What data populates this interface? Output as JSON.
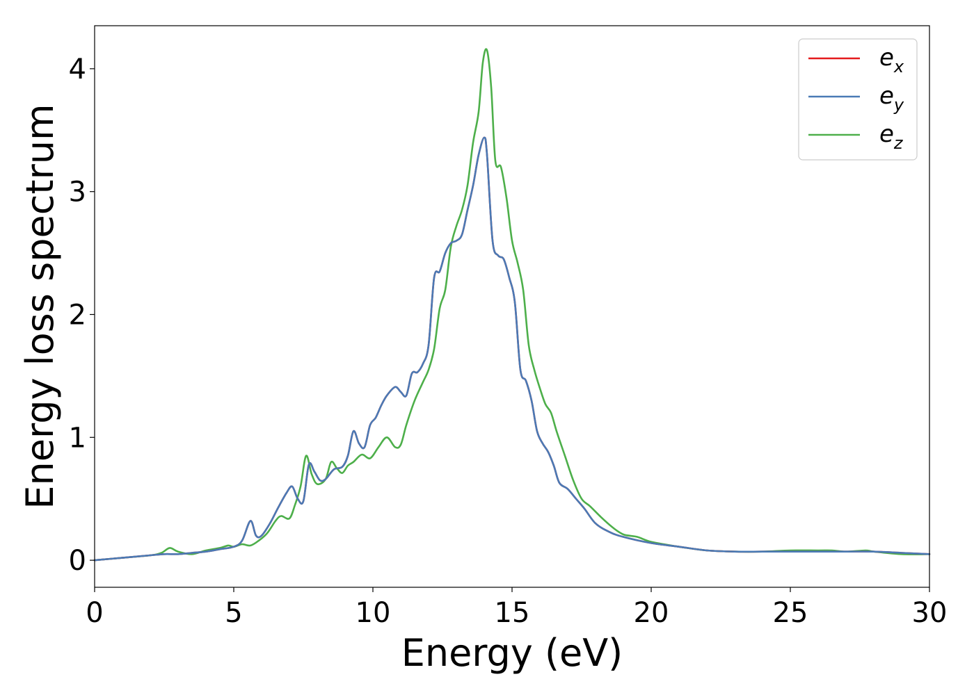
{
  "chart_data": {
    "type": "line",
    "xlabel": "Energy (eV)",
    "ylabel": "Energy loss spectrum",
    "xlim": [
      0,
      30
    ],
    "ylim": [
      -0.22,
      4.35
    ],
    "xticks": [
      0,
      5,
      10,
      15,
      20,
      25,
      30
    ],
    "xtick_labels": [
      "0",
      "5",
      "10",
      "15",
      "20",
      "25",
      "30"
    ],
    "yticks": [
      0,
      1,
      2,
      3,
      4
    ],
    "ytick_labels": [
      "0",
      "1",
      "2",
      "3",
      "4"
    ],
    "grid": false,
    "legend_position": "top-right",
    "series": [
      {
        "name": "e_x",
        "label_base": "e",
        "label_sub": "x",
        "color": "#e41a1c",
        "x": [
          0,
          1,
          2,
          2.5,
          3,
          3.5,
          4,
          4.5,
          5,
          5.3,
          5.6,
          5.8,
          6.0,
          6.3,
          6.6,
          6.9,
          7.1,
          7.3,
          7.5,
          7.7,
          7.9,
          8.1,
          8.3,
          8.6,
          8.9,
          9.1,
          9.3,
          9.5,
          9.7,
          9.9,
          10.1,
          10.3,
          10.5,
          10.8,
          11.0,
          11.2,
          11.4,
          11.6,
          11.8,
          12.0,
          12.2,
          12.4,
          12.6,
          12.8,
          13.0,
          13.2,
          13.4,
          13.6,
          13.8,
          14.0,
          14.1,
          14.3,
          14.5,
          14.7,
          14.9,
          15.1,
          15.3,
          15.5,
          15.7,
          15.9,
          16.1,
          16.3,
          16.5,
          16.7,
          17.0,
          17.3,
          17.6,
          18.0,
          18.5,
          19.0,
          20.0,
          21.0,
          22.0,
          23.0,
          24.0,
          25.0,
          26.0,
          27.0,
          28.0,
          29.0,
          30.0
        ],
        "y": [
          0.0,
          0.02,
          0.04,
          0.05,
          0.05,
          0.06,
          0.07,
          0.09,
          0.11,
          0.16,
          0.32,
          0.2,
          0.2,
          0.3,
          0.43,
          0.55,
          0.6,
          0.5,
          0.48,
          0.78,
          0.72,
          0.65,
          0.66,
          0.74,
          0.76,
          0.85,
          1.05,
          0.95,
          0.92,
          1.1,
          1.16,
          1.26,
          1.34,
          1.41,
          1.37,
          1.34,
          1.52,
          1.53,
          1.6,
          1.75,
          2.3,
          2.35,
          2.5,
          2.58,
          2.6,
          2.65,
          2.85,
          3.05,
          3.3,
          3.44,
          3.3,
          2.6,
          2.48,
          2.45,
          2.3,
          2.1,
          1.55,
          1.46,
          1.3,
          1.05,
          0.95,
          0.88,
          0.77,
          0.63,
          0.58,
          0.5,
          0.42,
          0.3,
          0.23,
          0.19,
          0.14,
          0.11,
          0.08,
          0.07,
          0.07,
          0.07,
          0.07,
          0.07,
          0.07,
          0.06,
          0.05
        ]
      },
      {
        "name": "e_y",
        "label_base": "e",
        "label_sub": "y",
        "color": "#4a7ab5",
        "x": [
          0,
          1,
          2,
          2.5,
          3,
          3.5,
          4,
          4.5,
          5,
          5.3,
          5.6,
          5.8,
          6.0,
          6.3,
          6.6,
          6.9,
          7.1,
          7.3,
          7.5,
          7.7,
          7.9,
          8.1,
          8.3,
          8.6,
          8.9,
          9.1,
          9.3,
          9.5,
          9.7,
          9.9,
          10.1,
          10.3,
          10.5,
          10.8,
          11.0,
          11.2,
          11.4,
          11.6,
          11.8,
          12.0,
          12.2,
          12.4,
          12.6,
          12.8,
          13.0,
          13.2,
          13.4,
          13.6,
          13.8,
          14.0,
          14.1,
          14.3,
          14.5,
          14.7,
          14.9,
          15.1,
          15.3,
          15.5,
          15.7,
          15.9,
          16.1,
          16.3,
          16.5,
          16.7,
          17.0,
          17.3,
          17.6,
          18.0,
          18.5,
          19.0,
          20.0,
          21.0,
          22.0,
          23.0,
          24.0,
          25.0,
          26.0,
          27.0,
          28.0,
          29.0,
          30.0
        ],
        "y": [
          0.0,
          0.02,
          0.04,
          0.05,
          0.05,
          0.06,
          0.07,
          0.09,
          0.11,
          0.16,
          0.32,
          0.2,
          0.2,
          0.3,
          0.43,
          0.55,
          0.6,
          0.5,
          0.48,
          0.78,
          0.72,
          0.65,
          0.66,
          0.74,
          0.76,
          0.85,
          1.05,
          0.95,
          0.92,
          1.1,
          1.16,
          1.26,
          1.34,
          1.41,
          1.37,
          1.34,
          1.52,
          1.53,
          1.6,
          1.75,
          2.3,
          2.35,
          2.5,
          2.58,
          2.6,
          2.65,
          2.85,
          3.05,
          3.3,
          3.44,
          3.3,
          2.6,
          2.48,
          2.45,
          2.3,
          2.1,
          1.55,
          1.46,
          1.3,
          1.05,
          0.95,
          0.88,
          0.77,
          0.63,
          0.58,
          0.5,
          0.42,
          0.3,
          0.23,
          0.19,
          0.14,
          0.11,
          0.08,
          0.07,
          0.07,
          0.07,
          0.07,
          0.07,
          0.07,
          0.06,
          0.05
        ]
      },
      {
        "name": "e_z",
        "label_base": "e",
        "label_sub": "z",
        "color": "#4daf4a",
        "x": [
          0,
          1,
          2,
          2.4,
          2.7,
          3.0,
          3.5,
          4.0,
          4.5,
          4.8,
          5.0,
          5.3,
          5.6,
          5.9,
          6.2,
          6.5,
          6.7,
          7.0,
          7.2,
          7.4,
          7.6,
          7.8,
          8.0,
          8.3,
          8.5,
          8.7,
          8.9,
          9.1,
          9.3,
          9.6,
          9.9,
          10.2,
          10.5,
          10.8,
          11.0,
          11.2,
          11.5,
          11.8,
          12.0,
          12.2,
          12.4,
          12.6,
          12.8,
          13.0,
          13.2,
          13.4,
          13.6,
          13.8,
          13.95,
          14.1,
          14.25,
          14.4,
          14.6,
          14.8,
          15.0,
          15.2,
          15.4,
          15.6,
          15.8,
          16.0,
          16.2,
          16.4,
          16.6,
          16.9,
          17.2,
          17.5,
          17.8,
          18.2,
          18.6,
          19.0,
          19.5,
          20.0,
          21.0,
          22.0,
          23.0,
          24.0,
          25.0,
          26.0,
          26.5,
          27.0,
          27.7,
          28.0,
          29.0,
          30.0
        ],
        "y": [
          0.0,
          0.02,
          0.04,
          0.06,
          0.1,
          0.07,
          0.05,
          0.08,
          0.1,
          0.12,
          0.11,
          0.13,
          0.12,
          0.16,
          0.22,
          0.32,
          0.36,
          0.34,
          0.45,
          0.6,
          0.85,
          0.7,
          0.62,
          0.66,
          0.8,
          0.75,
          0.71,
          0.77,
          0.8,
          0.86,
          0.83,
          0.92,
          1.0,
          0.92,
          0.94,
          1.1,
          1.3,
          1.45,
          1.55,
          1.72,
          2.05,
          2.2,
          2.55,
          2.72,
          2.85,
          3.05,
          3.4,
          3.65,
          4.05,
          4.15,
          3.85,
          3.25,
          3.2,
          2.95,
          2.6,
          2.42,
          2.2,
          1.75,
          1.55,
          1.4,
          1.27,
          1.2,
          1.05,
          0.85,
          0.65,
          0.5,
          0.44,
          0.35,
          0.27,
          0.21,
          0.19,
          0.15,
          0.11,
          0.08,
          0.07,
          0.07,
          0.08,
          0.08,
          0.08,
          0.07,
          0.08,
          0.07,
          0.05,
          0.05
        ]
      }
    ]
  }
}
